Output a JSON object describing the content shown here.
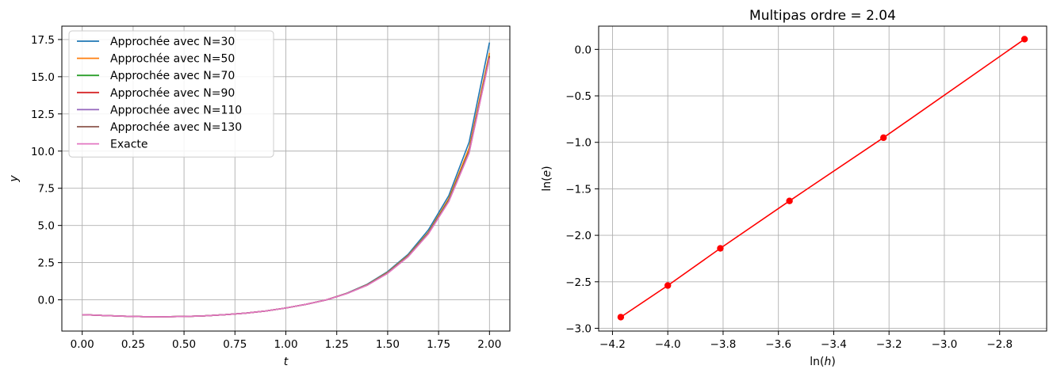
{
  "chart_data": [
    {
      "type": "line",
      "title": "",
      "xlabel": "t",
      "ylabel": "y",
      "xlim": [
        -0.1,
        2.1
      ],
      "ylim": [
        -2.1,
        18.4
      ],
      "xticks": [
        0.0,
        0.25,
        0.5,
        0.75,
        1.0,
        1.25,
        1.5,
        1.75,
        2.0
      ],
      "xtick_labels": [
        "0.00",
        "0.25",
        "0.50",
        "0.75",
        "1.00",
        "1.25",
        "1.50",
        "1.75",
        "2.00"
      ],
      "yticks": [
        0.0,
        2.5,
        5.0,
        7.5,
        10.0,
        12.5,
        15.0,
        17.5
      ],
      "ytick_labels": [
        "0.0",
        "2.5",
        "5.0",
        "7.5",
        "10.0",
        "12.5",
        "15.0",
        "17.5"
      ],
      "grid": true,
      "legend_position": "top-left",
      "series": [
        {
          "name": "Approchée avec N=30",
          "color": "#1f77b4",
          "x": [
            0.0,
            0.1,
            0.2,
            0.3,
            0.4,
            0.5,
            0.6,
            0.7,
            0.8,
            0.9,
            1.0,
            1.1,
            1.2,
            1.3,
            1.4,
            1.5,
            1.6,
            1.7,
            1.8,
            1.9,
            2.0
          ],
          "y": [
            -1.0,
            -1.05,
            -1.1,
            -1.13,
            -1.14,
            -1.12,
            -1.08,
            -1.0,
            -0.9,
            -0.75,
            -0.55,
            -0.3,
            0.0,
            0.45,
            1.05,
            1.9,
            3.05,
            4.7,
            7.0,
            10.6,
            17.3
          ]
        },
        {
          "name": "Approchée avec N=50",
          "color": "#ff7f0e",
          "x": [
            0.0,
            0.1,
            0.2,
            0.3,
            0.4,
            0.5,
            0.6,
            0.7,
            0.8,
            0.9,
            1.0,
            1.1,
            1.2,
            1.3,
            1.4,
            1.5,
            1.6,
            1.7,
            1.8,
            1.9,
            2.0
          ],
          "y": [
            -1.0,
            -1.05,
            -1.1,
            -1.13,
            -1.14,
            -1.12,
            -1.08,
            -1.0,
            -0.9,
            -0.75,
            -0.55,
            -0.3,
            0.0,
            0.44,
            1.02,
            1.85,
            2.98,
            4.55,
            6.8,
            10.2,
            16.6
          ]
        },
        {
          "name": "Approchée avec N=70",
          "color": "#2ca02c",
          "x": [
            0.0,
            0.1,
            0.2,
            0.3,
            0.4,
            0.5,
            0.6,
            0.7,
            0.8,
            0.9,
            1.0,
            1.1,
            1.2,
            1.3,
            1.4,
            1.5,
            1.6,
            1.7,
            1.8,
            1.9,
            2.0
          ],
          "y": [
            -1.0,
            -1.05,
            -1.1,
            -1.13,
            -1.14,
            -1.12,
            -1.08,
            -1.0,
            -0.9,
            -0.75,
            -0.55,
            -0.3,
            0.0,
            0.43,
            1.0,
            1.82,
            2.94,
            4.5,
            6.7,
            10.0,
            16.4
          ]
        },
        {
          "name": "Approchée avec N=90",
          "color": "#d62728",
          "x": [
            0.0,
            0.1,
            0.2,
            0.3,
            0.4,
            0.5,
            0.6,
            0.7,
            0.8,
            0.9,
            1.0,
            1.1,
            1.2,
            1.3,
            1.4,
            1.5,
            1.6,
            1.7,
            1.8,
            1.9,
            2.0
          ],
          "y": [
            -1.0,
            -1.05,
            -1.1,
            -1.13,
            -1.14,
            -1.12,
            -1.08,
            -1.0,
            -0.9,
            -0.75,
            -0.55,
            -0.3,
            0.0,
            0.43,
            0.99,
            1.8,
            2.92,
            4.47,
            6.65,
            9.95,
            16.35
          ]
        },
        {
          "name": "Approchée avec N=110",
          "color": "#9467bd",
          "x": [
            0.0,
            0.1,
            0.2,
            0.3,
            0.4,
            0.5,
            0.6,
            0.7,
            0.8,
            0.9,
            1.0,
            1.1,
            1.2,
            1.3,
            1.4,
            1.5,
            1.6,
            1.7,
            1.8,
            1.9,
            2.0
          ],
          "y": [
            -1.0,
            -1.05,
            -1.1,
            -1.13,
            -1.14,
            -1.12,
            -1.08,
            -1.0,
            -0.9,
            -0.75,
            -0.55,
            -0.3,
            0.0,
            0.43,
            0.99,
            1.8,
            2.91,
            4.46,
            6.63,
            9.92,
            16.3
          ]
        },
        {
          "name": "Approchée avec N=130",
          "color": "#8c564b",
          "x": [
            0.0,
            0.1,
            0.2,
            0.3,
            0.4,
            0.5,
            0.6,
            0.7,
            0.8,
            0.9,
            1.0,
            1.1,
            1.2,
            1.3,
            1.4,
            1.5,
            1.6,
            1.7,
            1.8,
            1.9,
            2.0
          ],
          "y": [
            -1.0,
            -1.05,
            -1.1,
            -1.13,
            -1.14,
            -1.12,
            -1.08,
            -1.0,
            -0.9,
            -0.75,
            -0.55,
            -0.3,
            0.0,
            0.43,
            0.99,
            1.79,
            2.9,
            4.45,
            6.62,
            9.9,
            16.28
          ]
        },
        {
          "name": "Exacte",
          "color": "#e377c2",
          "x": [
            0.0,
            0.1,
            0.2,
            0.3,
            0.4,
            0.5,
            0.6,
            0.7,
            0.8,
            0.9,
            1.0,
            1.1,
            1.2,
            1.3,
            1.4,
            1.5,
            1.6,
            1.7,
            1.8,
            1.9,
            2.0
          ],
          "y": [
            -1.0,
            -1.05,
            -1.1,
            -1.13,
            -1.14,
            -1.12,
            -1.08,
            -1.0,
            -0.9,
            -0.75,
            -0.55,
            -0.3,
            0.0,
            0.42,
            0.98,
            1.78,
            2.89,
            4.43,
            6.6,
            9.87,
            16.25
          ]
        }
      ]
    },
    {
      "type": "line",
      "title": "Multipas ordre = 2.04",
      "xlabel": "ln(h)",
      "ylabel": "ln(e)",
      "xlim": [
        -4.25,
        -2.63
      ],
      "ylim": [
        -3.03,
        0.25
      ],
      "xticks": [
        -4.2,
        -4.0,
        -3.8,
        -3.6,
        -3.4,
        -3.2,
        -3.0,
        -2.8
      ],
      "xtick_labels": [
        "−4.2",
        "−4.0",
        "−3.8",
        "−3.6",
        "−3.4",
        "−3.2",
        "−3.0",
        "−2.8"
      ],
      "yticks": [
        -3.0,
        -2.5,
        -2.0,
        -1.5,
        -1.0,
        -0.5,
        0.0
      ],
      "ytick_labels": [
        "−3.0",
        "−2.5",
        "−2.0",
        "−1.5",
        "−1.0",
        "−0.5",
        "0.0"
      ],
      "grid": true,
      "series": [
        {
          "color": "#ff0000",
          "marker": "circle",
          "x": [
            -4.17,
            -4.0,
            -3.81,
            -3.56,
            -3.22,
            -2.71
          ],
          "y": [
            -2.88,
            -2.54,
            -2.14,
            -1.63,
            -0.95,
            0.11
          ]
        }
      ]
    }
  ]
}
